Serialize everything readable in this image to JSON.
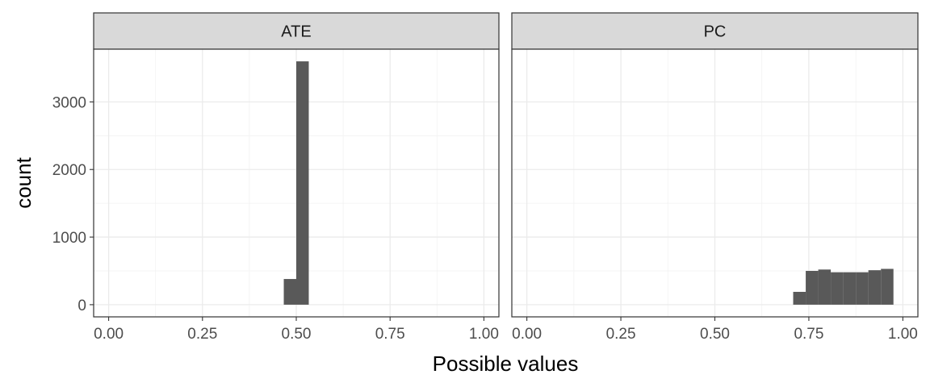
{
  "chart_data": {
    "type": "bar",
    "subtype": "faceted-histogram",
    "xlabel": "Possible values",
    "ylabel": "count",
    "xlim": [
      -0.04,
      1.04
    ],
    "ylim": [
      -180,
      3780
    ],
    "x_ticks": [
      0.0,
      0.25,
      0.5,
      0.75,
      1.0
    ],
    "x_tick_labels": [
      "0.00",
      "0.25",
      "0.50",
      "0.75",
      "1.00"
    ],
    "y_ticks": [
      0,
      1000,
      2000,
      3000
    ],
    "y_tick_labels": [
      "0",
      "1000",
      "2000",
      "3000"
    ],
    "grid": true,
    "bar_color": "#595959",
    "panels": [
      {
        "name": "ATE",
        "bins": [
          {
            "start": 0.4667,
            "end": 0.5,
            "count": 380
          },
          {
            "start": 0.5,
            "end": 0.5333,
            "count": 3600
          }
        ]
      },
      {
        "name": "PC",
        "bins": [
          {
            "start": 0.7083,
            "end": 0.7417,
            "count": 190
          },
          {
            "start": 0.7417,
            "end": 0.775,
            "count": 500
          },
          {
            "start": 0.775,
            "end": 0.8083,
            "count": 520
          },
          {
            "start": 0.8083,
            "end": 0.8417,
            "count": 480
          },
          {
            "start": 0.8417,
            "end": 0.875,
            "count": 480
          },
          {
            "start": 0.875,
            "end": 0.9083,
            "count": 480
          },
          {
            "start": 0.9083,
            "end": 0.9417,
            "count": 510
          },
          {
            "start": 0.9417,
            "end": 0.975,
            "count": 530
          }
        ]
      }
    ]
  }
}
